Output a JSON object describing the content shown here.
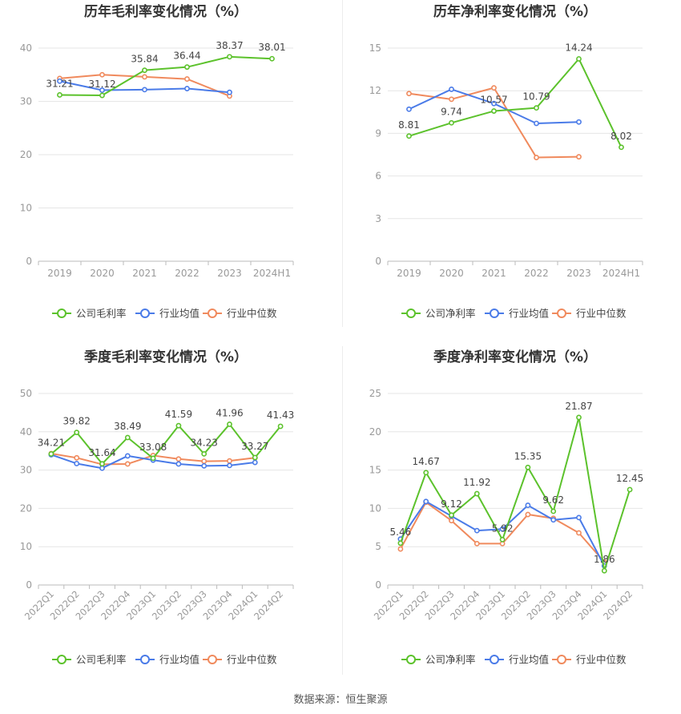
{
  "source_text": "数据来源：恒生聚源",
  "colors": {
    "company": "#5cc22c",
    "industry_avg": "#4a7be8",
    "industry_median": "#f08a5d"
  },
  "chart_data": [
    {
      "type": "line",
      "title": "历年毛利率变化情况（%）",
      "categories": [
        "2019",
        "2020",
        "2021",
        "2022",
        "2023",
        "2024H1"
      ],
      "ylim": [
        0,
        40
      ],
      "yticks": [
        "0",
        "10",
        "20",
        "30",
        "40"
      ],
      "grid": true,
      "legend_position": "bottom",
      "rotate_xlabels": false,
      "series": [
        {
          "name": "公司毛利率",
          "values": [
            31.21,
            31.12,
            35.84,
            36.44,
            38.37,
            38.01
          ],
          "labels": [
            "31.21",
            "31.12",
            "35.84",
            "36.44",
            "38.37",
            "38.01"
          ]
        },
        {
          "name": "行业均值",
          "values": [
            33.8,
            32.1,
            32.2,
            32.4,
            31.7,
            null
          ]
        },
        {
          "name": "行业中位数",
          "values": [
            34.3,
            35.0,
            34.6,
            34.2,
            31.0,
            null
          ]
        }
      ]
    },
    {
      "type": "line",
      "title": "历年净利率变化情况（%）",
      "categories": [
        "2019",
        "2020",
        "2021",
        "2022",
        "2023",
        "2024H1"
      ],
      "ylim": [
        0,
        15
      ],
      "yticks": [
        "0",
        "3",
        "6",
        "9",
        "12",
        "15"
      ],
      "grid": true,
      "legend_position": "bottom",
      "rotate_xlabels": false,
      "series": [
        {
          "name": "公司净利率",
          "values": [
            8.81,
            9.74,
            10.57,
            10.79,
            14.24,
            8.02
          ],
          "labels": [
            "8.81",
            "9.74",
            "10.57",
            "10.79",
            "14.24",
            "8.02"
          ]
        },
        {
          "name": "行业均值",
          "values": [
            10.7,
            12.1,
            11.1,
            9.7,
            9.8,
            null
          ]
        },
        {
          "name": "行业中位数",
          "values": [
            11.8,
            11.4,
            12.2,
            7.3,
            7.35,
            null
          ]
        }
      ]
    },
    {
      "type": "line",
      "title": "季度毛利率变化情况（%）",
      "categories": [
        "2022Q1",
        "2022Q2",
        "2022Q3",
        "2022Q4",
        "2023Q1",
        "2023Q2",
        "2023Q3",
        "2023Q4",
        "2024Q1",
        "2024Q2"
      ],
      "ylim": [
        0,
        50
      ],
      "yticks": [
        "0",
        "10",
        "20",
        "30",
        "40",
        "50"
      ],
      "grid": true,
      "legend_position": "bottom",
      "rotate_xlabels": true,
      "series": [
        {
          "name": "公司毛利率",
          "values": [
            34.21,
            39.82,
            31.64,
            38.49,
            33.08,
            41.59,
            34.23,
            41.96,
            33.27,
            41.43
          ],
          "labels": [
            "34.21",
            "39.82",
            "31.64",
            "38.49",
            "33.08",
            "41.59",
            "34.23",
            "41.96",
            "33.27",
            "41.43"
          ]
        },
        {
          "name": "行业均值",
          "values": [
            34.0,
            31.7,
            30.5,
            33.7,
            32.6,
            31.6,
            31.1,
            31.2,
            32.0,
            null
          ]
        },
        {
          "name": "行业中位数",
          "values": [
            34.3,
            33.2,
            31.5,
            31.6,
            33.8,
            32.9,
            32.3,
            32.4,
            33.2,
            null
          ]
        }
      ]
    },
    {
      "type": "line",
      "title": "季度净利率变化情况（%）",
      "categories": [
        "2022Q1",
        "2022Q2",
        "2022Q3",
        "2022Q4",
        "2023Q1",
        "2023Q2",
        "2023Q3",
        "2023Q4",
        "2024Q1",
        "2024Q2"
      ],
      "ylim": [
        0,
        25
      ],
      "yticks": [
        "0",
        "5",
        "10",
        "15",
        "20",
        "25"
      ],
      "grid": true,
      "legend_position": "bottom",
      "rotate_xlabels": true,
      "series": [
        {
          "name": "公司净利率",
          "values": [
            5.46,
            14.67,
            9.12,
            11.92,
            5.92,
            15.35,
            9.62,
            21.87,
            1.86,
            12.45
          ],
          "labels": [
            "5.46",
            "14.67",
            "9.12",
            "11.92",
            "5.92",
            "15.35",
            "9.62",
            "21.87",
            "1.86",
            "12.45"
          ]
        },
        {
          "name": "行业均值",
          "values": [
            6.0,
            10.9,
            9.0,
            7.1,
            7.3,
            10.4,
            8.5,
            8.8,
            2.5,
            null
          ]
        },
        {
          "name": "行业中位数",
          "values": [
            4.7,
            10.8,
            8.4,
            5.4,
            5.4,
            9.2,
            8.7,
            6.8,
            3.0,
            null
          ]
        }
      ]
    }
  ]
}
